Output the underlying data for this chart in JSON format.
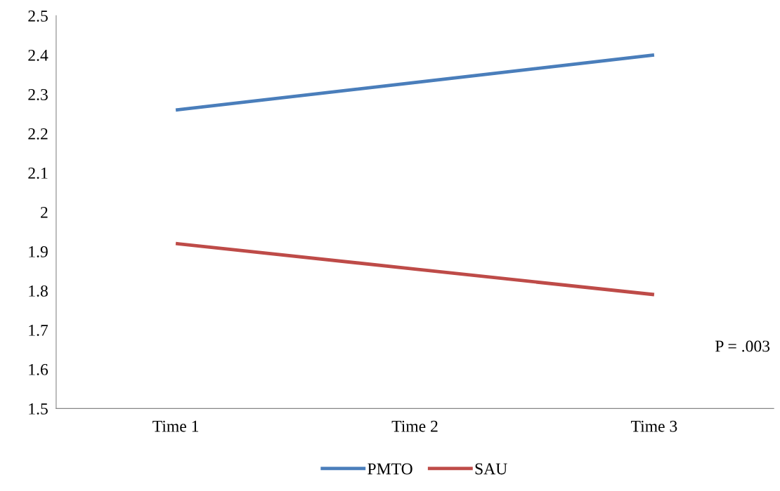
{
  "chart_data": {
    "type": "line",
    "categories": [
      "Time 1",
      "Time 2",
      "Time 3"
    ],
    "series": [
      {
        "name": "PMTO",
        "color": "#4a7ebb",
        "values": [
          2.26,
          2.33,
          2.4
        ]
      },
      {
        "name": "SAU",
        "color": "#be4b48",
        "values": [
          1.92,
          1.855,
          1.79
        ]
      }
    ],
    "ylim": [
      1.5,
      2.5
    ],
    "yticks": [
      {
        "value": 1.5,
        "label": "1.5"
      },
      {
        "value": 1.6,
        "label": "1.6"
      },
      {
        "value": 1.7,
        "label": "1.7"
      },
      {
        "value": 1.8,
        "label": "1.8"
      },
      {
        "value": 1.9,
        "label": "1.9"
      },
      {
        "value": 2,
        "label": "2"
      },
      {
        "value": 2.1,
        "label": "2.1"
      },
      {
        "value": 2.2,
        "label": "2.2"
      },
      {
        "value": 2.3,
        "label": "2.3"
      },
      {
        "value": 2.4,
        "label": "2.4"
      },
      {
        "value": 2.5,
        "label": "2.5"
      }
    ],
    "annotations": [
      "P = .003"
    ],
    "grid": false,
    "legend": "bottom",
    "marker": "none",
    "line_style": "solid"
  }
}
